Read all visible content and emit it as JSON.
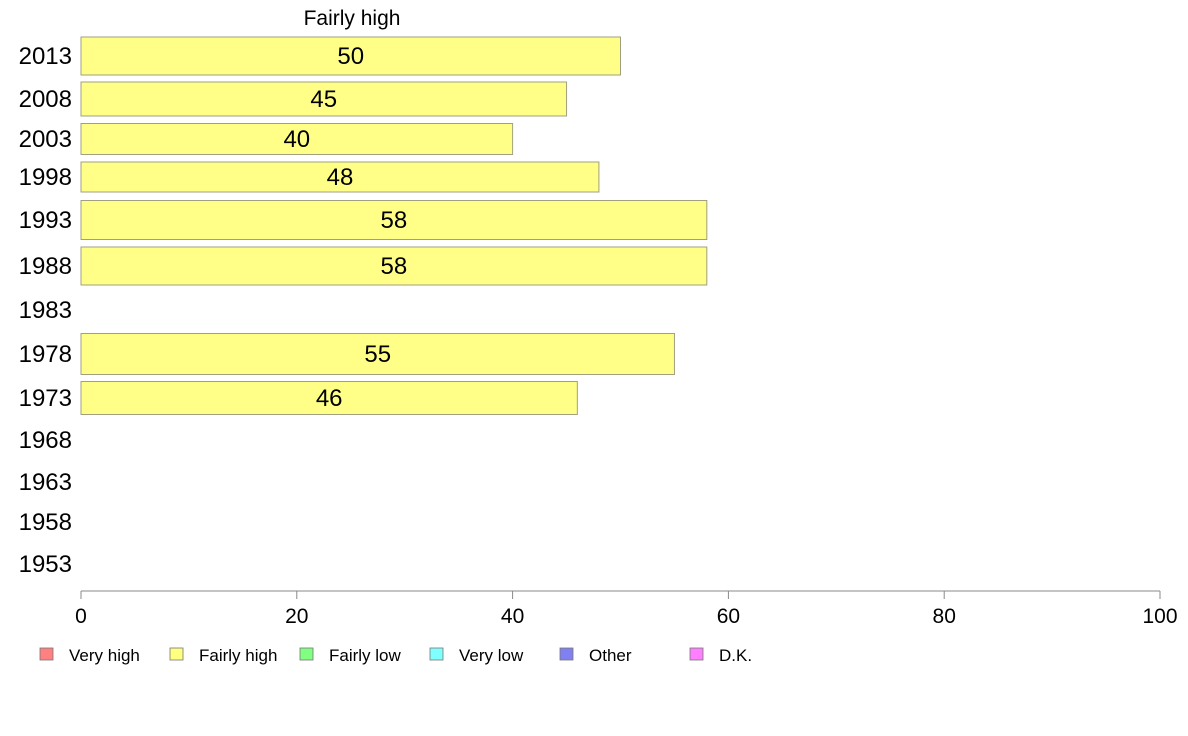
{
  "chart_data": {
    "type": "bar",
    "orientation": "horizontal",
    "title": "Fairly high",
    "categories": [
      "2013",
      "2008",
      "2003",
      "1998",
      "1993",
      "1988",
      "1983",
      "1978",
      "1973",
      "1968",
      "1963",
      "1958",
      "1953"
    ],
    "series": [
      {
        "name": "Fairly high",
        "values": [
          50,
          45,
          40,
          48,
          58,
          58,
          null,
          55,
          46,
          null,
          null,
          null,
          null
        ]
      }
    ],
    "xlim": [
      0,
      100
    ],
    "xticks": [
      "0",
      "20",
      "40",
      "60",
      "80",
      "100"
    ],
    "grid": false,
    "legend": {
      "placement": "bottom",
      "entries": [
        {
          "label": "Very high",
          "color": "#ff8080"
        },
        {
          "label": "Fairly high",
          "color": "#ffff80"
        },
        {
          "label": "Fairly low",
          "color": "#80ff80"
        },
        {
          "label": "Very low",
          "color": "#80ffff"
        },
        {
          "label": "Other",
          "color": "#8080f0"
        },
        {
          "label": "D.K.",
          "color": "#ff80ff"
        }
      ]
    },
    "colors": {
      "bar_fill": "#ffff88",
      "bar_stroke": "#a0a080",
      "axis": "#888888"
    }
  }
}
